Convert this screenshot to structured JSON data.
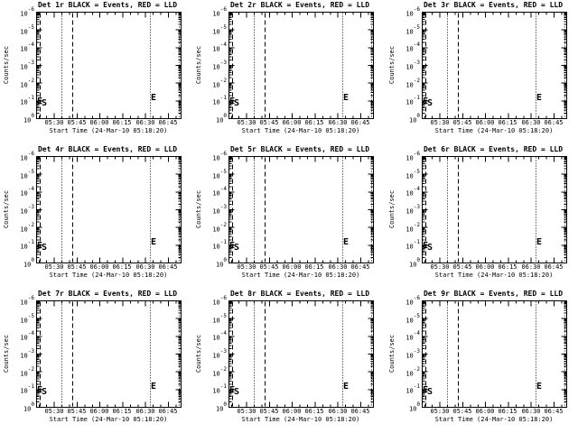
{
  "window": {
    "background_color": "#ffffff",
    "foreground_color": "#000000"
  },
  "panels": [
    {
      "title": "Det 1r BLACK = Events, RED = LLD"
    },
    {
      "title": "Det 2r BLACK = Events, RED = LLD"
    },
    {
      "title": "Det 3r BLACK = Events, RED = LLD"
    },
    {
      "title": "Det 4r BLACK = Events, RED = LLD"
    },
    {
      "title": "Det 5r BLACK = Events, RED = LLD"
    },
    {
      "title": "Det 6r BLACK = Events, RED = LLD"
    },
    {
      "title": "Det 7r BLACK = Events, RED = LLD"
    },
    {
      "title": "Det 8r BLACK = Events, RED = LLD"
    },
    {
      "title": "Det 9r BLACK = Events, RED = LLD"
    }
  ],
  "y_axis": {
    "title": "Counts/sec",
    "ticks": [
      {
        "base": "10",
        "exp": "-6"
      },
      {
        "base": "10",
        "exp": "-5"
      },
      {
        "base": "10",
        "exp": "-4"
      },
      {
        "base": "10",
        "exp": "-3"
      },
      {
        "base": "10",
        "exp": "-2"
      },
      {
        "base": "10",
        "exp": "-1"
      },
      {
        "base": "10",
        "exp": "0"
      }
    ]
  },
  "x_axis": {
    "title": "Start Time (24-Mar-10 05:18:20)",
    "tick_labels": [
      "05:30",
      "05:45",
      "06:00",
      "06:15",
      "06:30",
      "06:45"
    ]
  },
  "chart_data": {
    "type": "line",
    "subplot_titles": [
      "Det 1r BLACK = Events, RED = LLD",
      "Det 2r BLACK = Events, RED = LLD",
      "Det 3r BLACK = Events, RED = LLD",
      "Det 4r BLACK = Events, RED = LLD",
      "Det 5r BLACK = Events, RED = LLD",
      "Det 6r BLACK = Events, RED = LLD",
      "Det 7r BLACK = Events, RED = LLD",
      "Det 8r BLACK = Events, RED = LLD",
      "Det 9r BLACK = Events, RED = LLD"
    ],
    "xlabel": "Start Time (24-Mar-10 05:18:20)",
    "ylabel": "Counts/sec",
    "y_scale": "log",
    "y_tick_labels_top_to_bottom": [
      "10^-6",
      "10^-5",
      "10^-4",
      "10^-3",
      "10^-2",
      "10^-1",
      "10^0"
    ],
    "y_tick_exponents": [
      -6,
      -5,
      -4,
      -3,
      -2,
      -1,
      0
    ],
    "x_ticks": [
      "05:30",
      "05:45",
      "06:00",
      "06:15",
      "06:30",
      "06:45"
    ],
    "x_range_minutes_from_start": [
      0,
      95
    ],
    "x_major_start_minute": 11.6667,
    "x_major_step": 15,
    "x_minor_start_minute": 1.6667,
    "x_minor_step": 5,
    "series": [],
    "annotations": {
      "dashed_vlines_pct": [
        2.5,
        25
      ],
      "dotted_vlines_pct": [
        17.5,
        78.75,
        98.75
      ],
      "dashed_vline_times": [
        "05:20",
        "05:42"
      ],
      "dotted_vline_times": [
        "05:35",
        "06:33",
        "06:52"
      ],
      "labels": [
        {
          "text": "E",
          "position": "bottom-left-on-dashed-line"
        },
        {
          "text": "S",
          "position": "bottom-left-after-dashed-line"
        },
        {
          "text": "E",
          "position": "bottom-right-of-second-dotted-line"
        }
      ]
    }
  }
}
